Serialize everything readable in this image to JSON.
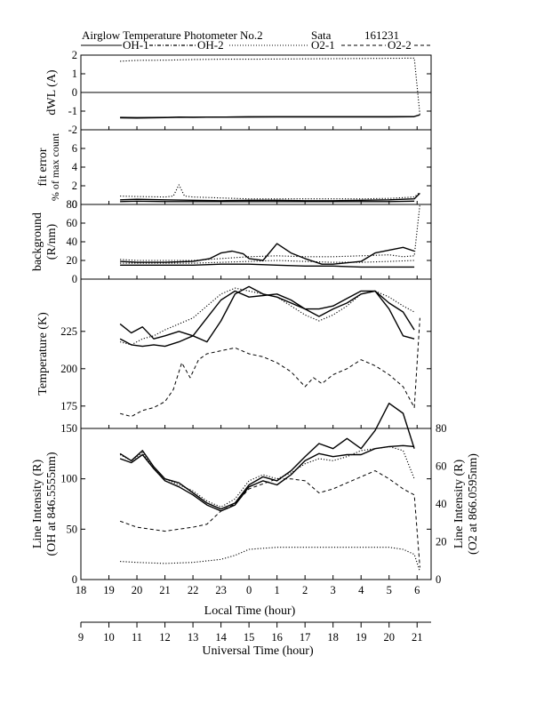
{
  "header": {
    "title": "Airglow Temperature Photometer No.2",
    "site": "Sata",
    "date_code": "161231",
    "legend": [
      "OH-1",
      "OH-2",
      "O2-1",
      "O2-2"
    ]
  },
  "colors": {
    "ink": "#000000",
    "background": "#ffffff"
  },
  "chart_data": [
    {
      "type": "line",
      "panel": "dwl",
      "ylabel": "dWL (A)",
      "ylim": [
        -2,
        2
      ],
      "yticks": [
        -2,
        -1,
        0,
        1,
        2
      ],
      "series": [
        {
          "style": "dotted",
          "x": [
            19.4,
            20,
            21,
            22,
            23,
            0,
            1,
            2,
            3,
            4,
            5,
            5.9,
            6.1
          ],
          "y": [
            1.67,
            1.72,
            1.73,
            1.76,
            1.78,
            1.78,
            1.79,
            1.8,
            1.81,
            1.82,
            1.83,
            1.84,
            -1.2
          ]
        },
        {
          "style": "solid",
          "x": [
            19.4,
            20,
            21,
            21.5,
            22,
            23,
            0,
            1,
            2,
            3,
            4,
            5,
            5.9,
            6.1
          ],
          "y": [
            -1.36,
            -1.37,
            -1.35,
            -1.32,
            -1.33,
            -1.32,
            -1.31,
            -1.3,
            -1.3,
            -1.3,
            -1.3,
            -1.3,
            -1.29,
            -1.2
          ]
        },
        {
          "style": "solid",
          "x": [
            19.4,
            20,
            21,
            22,
            23,
            0,
            1,
            2,
            3,
            4,
            5,
            5.9
          ],
          "y": [
            -1.34,
            -1.35,
            -1.34,
            -1.33,
            -1.32,
            -1.31,
            -1.31,
            -1.31,
            -1.31,
            -1.31,
            -1.31,
            -1.3
          ]
        }
      ]
    },
    {
      "type": "line",
      "panel": "fit_error",
      "ylabel": "fit error",
      "ylabel2": "% of max count",
      "ylim": [
        0,
        8
      ],
      "yticks": [
        0,
        2,
        4,
        6
      ],
      "series": [
        {
          "style": "dotted",
          "x": [
            19.4,
            20,
            21,
            21.3,
            21.5,
            21.7,
            22,
            23,
            0,
            1,
            2,
            3,
            4,
            5,
            5.9,
            6.1
          ],
          "y": [
            0.9,
            0.85,
            0.8,
            0.9,
            2.1,
            0.9,
            0.8,
            0.7,
            0.6,
            0.6,
            0.6,
            0.6,
            0.6,
            0.65,
            0.8,
            1.3
          ]
        },
        {
          "style": "solid",
          "x": [
            19.4,
            20,
            21,
            22,
            23,
            0,
            1,
            2,
            3,
            4,
            5,
            5.9,
            6.1
          ],
          "y": [
            0.5,
            0.55,
            0.5,
            0.45,
            0.4,
            0.45,
            0.45,
            0.4,
            0.4,
            0.45,
            0.5,
            0.6,
            1.2
          ]
        },
        {
          "style": "solid",
          "x": [
            19.4,
            20,
            21,
            22,
            23,
            0,
            1,
            2,
            3,
            4,
            5,
            5.9
          ],
          "y": [
            0.3,
            0.35,
            0.3,
            0.3,
            0.3,
            0.3,
            0.3,
            0.3,
            0.3,
            0.3,
            0.3,
            0.35
          ]
        }
      ]
    },
    {
      "type": "line",
      "panel": "background",
      "ylabel": "background",
      "ylabel2": "(R/nm)",
      "ylim": [
        0,
        80
      ],
      "yticks": [
        0,
        20,
        40,
        60,
        80
      ],
      "series": [
        {
          "style": "solid",
          "x": [
            19.4,
            20,
            21,
            22,
            23,
            0,
            1,
            2,
            3,
            4,
            5,
            5.9
          ],
          "y": [
            15,
            15,
            15,
            15,
            16,
            16,
            15,
            14,
            14,
            13,
            13,
            13
          ]
        },
        {
          "style": "solid",
          "x": [
            19.4,
            20,
            21,
            22,
            22.6,
            23,
            23.4,
            23.8,
            0,
            0.5,
            1,
            1.5,
            2,
            2.6,
            3,
            4,
            4.5,
            5,
            5.5,
            5.9
          ],
          "y": [
            19,
            18,
            18,
            19,
            22,
            28,
            30,
            27,
            22,
            20,
            38,
            28,
            22,
            16,
            16,
            19,
            28,
            31,
            34,
            30
          ]
        },
        {
          "style": "dotted",
          "x": [
            19.4,
            20,
            21,
            22,
            23,
            0,
            1,
            2,
            3,
            4,
            5,
            5.5,
            5.9,
            6.1
          ],
          "y": [
            21,
            20,
            20,
            20,
            22,
            24,
            25,
            24,
            24,
            25,
            26,
            24,
            25,
            80
          ]
        },
        {
          "style": "dotted",
          "x": [
            19.4,
            20,
            21,
            22,
            23,
            0,
            1,
            2,
            3,
            4,
            5,
            5.9
          ],
          "y": [
            17,
            17,
            17,
            17,
            18,
            19,
            20,
            19,
            18,
            18,
            19,
            20
          ]
        }
      ]
    },
    {
      "type": "line",
      "panel": "temperature",
      "ylabel": "Temperature (K)",
      "ylim": [
        160,
        260
      ],
      "yticks": [
        175,
        200,
        225
      ],
      "series": [
        {
          "style": "solid",
          "x": [
            19.4,
            19.8,
            20.2,
            20.6,
            21,
            21.5,
            22,
            22.5,
            23,
            23.5,
            0,
            0.5,
            1,
            1.5,
            2,
            2.5,
            3,
            3.5,
            4,
            4.5,
            5,
            5.5,
            5.9
          ],
          "y": [
            220,
            216,
            215,
            216,
            215,
            218,
            222,
            234,
            246,
            252,
            248,
            249,
            250,
            246,
            240,
            240,
            242,
            247,
            252,
            252,
            244,
            238,
            226
          ]
        },
        {
          "style": "solid",
          "x": [
            19.4,
            19.8,
            20.2,
            20.6,
            21,
            21.5,
            22,
            22.5,
            23,
            23.5,
            0,
            0.5,
            1,
            1.5,
            2,
            2.5,
            3,
            3.5,
            4,
            4.5,
            5,
            5.5,
            5.9
          ],
          "y": [
            230,
            224,
            228,
            220,
            222,
            225,
            222,
            218,
            232,
            250,
            255,
            250,
            248,
            244,
            240,
            235,
            240,
            244,
            250,
            252,
            240,
            222,
            220
          ]
        },
        {
          "style": "dotted",
          "x": [
            19.4,
            19.8,
            20.2,
            20.6,
            21,
            21.5,
            22,
            22.5,
            23,
            23.5,
            0,
            0.5,
            1,
            1.5,
            2,
            2.5,
            3,
            3.5,
            4,
            4.5,
            5,
            5.5,
            5.9
          ],
          "y": [
            218,
            216,
            220,
            222,
            226,
            230,
            234,
            242,
            250,
            254,
            252,
            250,
            248,
            242,
            236,
            232,
            236,
            242,
            250,
            252,
            248,
            242,
            238
          ]
        },
        {
          "style": "dashed",
          "x": [
            19.4,
            19.8,
            20.2,
            20.6,
            21,
            21.3,
            21.6,
            21.9,
            22.2,
            22.5,
            23,
            23.5,
            0,
            0.5,
            1,
            1.5,
            2,
            2.3,
            2.6,
            3,
            3.5,
            4,
            4.5,
            5,
            5.5,
            5.9,
            6.1
          ],
          "y": [
            170,
            168,
            172,
            174,
            178,
            186,
            204,
            194,
            206,
            210,
            212,
            214,
            210,
            208,
            204,
            198,
            188,
            194,
            190,
            196,
            200,
            206,
            202,
            196,
            188,
            174,
            234
          ]
        }
      ]
    },
    {
      "type": "line",
      "panel": "line_intensity",
      "ylabel": "Line Intensity (R)",
      "ylabel2": "(OH at 846.5555nm)",
      "ylabel_right": "Line Intensity (R)",
      "ylabel_right2": "(O2 at 866.0595nm)",
      "ylim": [
        0,
        150
      ],
      "yticks": [
        0,
        50,
        100,
        150
      ],
      "ylim_right": [
        0,
        80
      ],
      "yticks_right": [
        0,
        20,
        40,
        60,
        80
      ],
      "xlabel": "Local Time (hour)",
      "xticklabels": [
        "18",
        "19",
        "20",
        "21",
        "22",
        "23",
        "0",
        "1",
        "2",
        "3",
        "4",
        "5",
        "6"
      ],
      "xlabel_ut": "Universal Time (hour)",
      "xticklabels_ut": [
        "9",
        "10",
        "11",
        "12",
        "13",
        "14",
        "15",
        "16",
        "17",
        "18",
        "19",
        "20",
        "21"
      ],
      "series": [
        {
          "style": "solid",
          "axis": "left",
          "x": [
            19.4,
            19.8,
            20.2,
            20.6,
            21,
            21.5,
            22,
            22.5,
            23,
            23.5,
            0,
            0.5,
            1,
            1.5,
            2,
            2.5,
            3,
            3.5,
            4,
            4.5,
            5,
            5.5,
            5.9
          ],
          "y": [
            125,
            118,
            128,
            112,
            100,
            96,
            86,
            76,
            70,
            76,
            94,
            102,
            98,
            108,
            122,
            135,
            130,
            140,
            130,
            148,
            175,
            165,
            130
          ]
        },
        {
          "style": "solid",
          "axis": "left",
          "x": [
            19.4,
            19.8,
            20.2,
            20.6,
            21,
            21.5,
            22,
            22.5,
            23,
            23.5,
            0,
            0.5,
            1,
            1.5,
            2,
            2.5,
            3,
            3.5,
            4,
            4.5,
            5,
            5.5,
            5.9
          ],
          "y": [
            120,
            116,
            124,
            110,
            98,
            92,
            84,
            74,
            68,
            74,
            92,
            98,
            94,
            104,
            118,
            125,
            122,
            124,
            124,
            130,
            132,
            133,
            132
          ]
        },
        {
          "style": "dotted",
          "axis": "left",
          "x": [
            19.4,
            19.8,
            20.2,
            20.6,
            21,
            21.5,
            22,
            22.5,
            23,
            23.5,
            0,
            0.5,
            1,
            1.5,
            2,
            2.5,
            3,
            3.5,
            4,
            4.5,
            5,
            5.5,
            5.9
          ],
          "y": [
            124,
            118,
            126,
            110,
            100,
            94,
            88,
            78,
            72,
            80,
            98,
            104,
            100,
            106,
            115,
            120,
            118,
            122,
            128,
            130,
            132,
            128,
            100
          ]
        },
        {
          "style": "dashed",
          "axis": "left",
          "x": [
            19.4,
            20,
            21,
            21.5,
            22,
            22.5,
            23,
            23.5,
            0,
            0.5,
            1,
            1.5,
            2,
            2.5,
            3,
            3.5,
            4,
            4.5,
            5,
            5.5,
            5.9,
            6.1
          ],
          "y": [
            58,
            52,
            48,
            50,
            52,
            55,
            68,
            75,
            90,
            95,
            100,
            100,
            98,
            86,
            90,
            96,
            102,
            108,
            100,
            90,
            84,
            12
          ]
        },
        {
          "style": "dotted",
          "axis": "left",
          "x": [
            19.4,
            20,
            21,
            22,
            23,
            23.5,
            0,
            1,
            2,
            3,
            4,
            5,
            5.5,
            5.9,
            6.1
          ],
          "y": [
            18,
            17,
            16,
            17,
            20,
            24,
            30,
            32,
            32,
            32,
            32,
            32,
            30,
            25,
            8
          ]
        }
      ]
    }
  ]
}
